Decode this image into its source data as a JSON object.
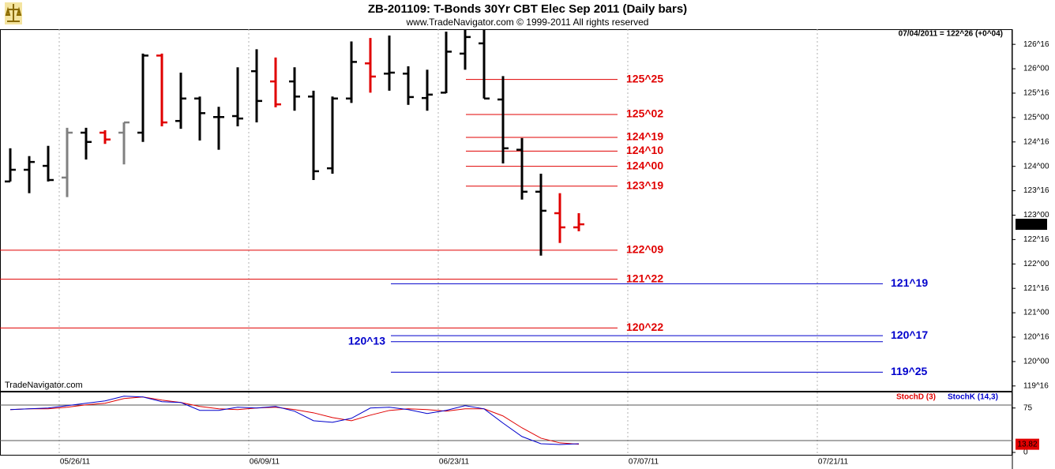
{
  "chart_data": [
    {
      "type": "ohlc",
      "title": "ZB-201109:  T-Bonds 30Yr CBT Elec Sep 2011  (Daily bars)",
      "subtitle": "www.TradeNavigator.com © 1999-2011 All rights reserved",
      "watermark": "TradeNavigator.com",
      "last_info": "07/04/2011 = 122^26 (+0^04)",
      "last_price": {
        "value": 122.8125,
        "label": "122^26"
      },
      "ylim": [
        119.4,
        126.81
      ],
      "yticks": [
        {
          "value": 126.5,
          "label": "126^16"
        },
        {
          "value": 126,
          "label": "126^00"
        },
        {
          "value": 125.5,
          "label": "125^16"
        },
        {
          "value": 125,
          "label": "125^00"
        },
        {
          "value": 124.5,
          "label": "124^16"
        },
        {
          "value": 124,
          "label": "124^00"
        },
        {
          "value": 123.5,
          "label": "123^16"
        },
        {
          "value": 123,
          "label": "123^00"
        },
        {
          "value": 122.5,
          "label": "122^16"
        },
        {
          "value": 122,
          "label": "122^00"
        },
        {
          "value": 121.5,
          "label": "121^16"
        },
        {
          "value": 121,
          "label": "121^00"
        },
        {
          "value": 120.5,
          "label": "120^16"
        },
        {
          "value": 120,
          "label": "120^00"
        },
        {
          "value": 119.5,
          "label": "119^16"
        }
      ],
      "open": [
        123.69,
        123.93,
        124.01,
        123.77,
        124.69,
        124.69,
        124.69,
        124.69,
        126.27,
        124.93,
        125.39,
        125.01,
        125.03,
        125.95,
        125.74,
        125.74,
        125.43,
        123.96,
        125.39,
        126.11,
        125.9,
        125.9,
        125.4,
        125.51,
        126.31,
        126.52,
        125.37,
        124.34,
        123.48,
        123.04,
        122.75
      ],
      "high": [
        124.37,
        124.21,
        124.42,
        124.79,
        124.79,
        124.74,
        124.9,
        126.31,
        126.31,
        125.92,
        125.43,
        125.22,
        126.03,
        126.4,
        126.23,
        126.03,
        125.55,
        125.43,
        126.56,
        126.63,
        126.68,
        126.05,
        125.98,
        126.76,
        126.89,
        126.81,
        125.85,
        124.58,
        123.85,
        123.45,
        123.04
      ],
      "low": [
        123.69,
        123.45,
        123.69,
        123.37,
        124.14,
        124.46,
        124.04,
        124.5,
        124.82,
        124.77,
        124.53,
        124.34,
        124.82,
        124.9,
        125.21,
        125.14,
        123.72,
        123.85,
        125.3,
        125.51,
        125.55,
        125.26,
        125.14,
        125.5,
        125.98,
        125.39,
        124.06,
        123.32,
        122.17,
        122.43,
        122.67
      ],
      "close": [
        123.93,
        124.09,
        123.72,
        124.69,
        124.5,
        124.55,
        124.9,
        126.27,
        124.9,
        125.39,
        125.09,
        125.01,
        124.98,
        125.34,
        125.27,
        125.43,
        123.9,
        125.39,
        126.14,
        125.84,
        125.92,
        125.42,
        125.47,
        126.35,
        126.65,
        125.39,
        124.37,
        123.48,
        123.09,
        122.75,
        122.8125
      ],
      "bar_colors": [
        "#000000",
        "#000000",
        "#000000",
        "#808080",
        "#000000",
        "#e00000",
        "#808080",
        "#000000",
        "#e00000",
        "#000000",
        "#000000",
        "#000000",
        "#000000",
        "#000000",
        "#e00000",
        "#000000",
        "#000000",
        "#000000",
        "#000000",
        "#e00000",
        "#000000",
        "#000000",
        "#000000",
        "#000000",
        "#000000",
        "#000000",
        "#000000",
        "#000000",
        "#000000",
        "#e00000",
        "#e00000"
      ],
      "levels": [
        {
          "label": "125^25",
          "value": 125.78125,
          "color": "#e00000"
        },
        {
          "label": "125^02",
          "value": 125.0625,
          "color": "#e00000"
        },
        {
          "label": "124^19",
          "value": 124.59375,
          "color": "#e00000"
        },
        {
          "label": "124^10",
          "value": 124.3125,
          "color": "#e00000"
        },
        {
          "label": "124^00",
          "value": 124,
          "color": "#e00000"
        },
        {
          "label": "123^19",
          "value": 123.59375,
          "color": "#e00000"
        },
        {
          "label": "122^09",
          "value": 122.28125,
          "color": "#e00000"
        },
        {
          "label": "121^22",
          "value": 121.6875,
          "color": "#e00000"
        },
        {
          "label": "120^22",
          "value": 120.6875,
          "color": "#e00000"
        },
        {
          "label": "121^19",
          "value": 121.59375,
          "color": "#0000cc"
        },
        {
          "label": "120^17",
          "value": 120.53125,
          "color": "#0000cc"
        },
        {
          "label": "120^13",
          "value": 120.40625,
          "color": "#0000cc"
        },
        {
          "label": "119^25",
          "value": 119.78125,
          "color": "#0000cc"
        }
      ]
    },
    {
      "type": "line",
      "categories": [
        null,
        null,
        null,
        "05/26/11",
        null,
        null,
        null,
        null,
        null,
        null,
        null,
        null,
        null,
        "06/09/11",
        null,
        null,
        null,
        null,
        null,
        null,
        null,
        null,
        null,
        "06/23/11",
        null,
        null,
        null,
        null,
        null,
        null,
        null,
        null,
        null,
        "07/07/11",
        null,
        null,
        null,
        null,
        null,
        null,
        null,
        null,
        null,
        "07/21/11",
        null,
        null,
        null,
        null,
        null,
        null,
        null,
        null,
        null
      ],
      "series": [
        {
          "name": "StochD (3)",
          "color": "#e00000",
          "values": [
            72.3,
            73.6,
            73.6,
            76.3,
            80.3,
            83.0,
            91.0,
            93.7,
            88.4,
            84.3,
            77.6,
            73.6,
            72.3,
            75.0,
            76.3,
            72.3,
            66.9,
            58.9,
            53.5,
            62.9,
            70.9,
            73.6,
            72.3,
            69.6,
            73.6,
            73.6,
            61.6,
            41.5,
            24.1,
            16.1,
            13.82,
            null,
            null,
            null,
            null,
            null,
            null,
            null,
            null,
            null,
            null,
            null,
            null,
            null,
            null,
            null,
            null,
            null,
            null,
            null,
            null,
            null,
            null
          ]
        },
        {
          "name": "StochK (14,3)",
          "color": "#0000cc",
          "values": [
            72.3,
            73.6,
            75.0,
            79.0,
            83.0,
            87.0,
            95.0,
            93.7,
            85.7,
            84.3,
            71.0,
            71.0,
            76.3,
            75.0,
            77.6,
            69.6,
            53.5,
            50.9,
            57.6,
            75.0,
            76.3,
            72.3,
            65.6,
            71.0,
            79.0,
            73.6,
            49.5,
            26.8,
            14.7,
            13.4,
            14.7,
            null,
            null,
            null,
            null,
            null,
            null,
            null,
            null,
            null,
            null,
            null,
            null,
            null,
            null,
            null,
            null,
            null,
            null,
            null,
            null,
            null,
            null
          ]
        }
      ],
      "ylim": [
        0,
        100
      ],
      "yticks": [
        75,
        0
      ],
      "levels": [
        80,
        20
      ],
      "last_value": 13.82
    }
  ]
}
